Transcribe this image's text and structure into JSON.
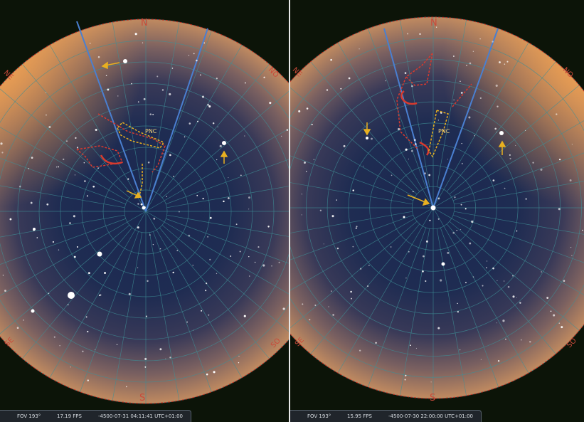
{
  "left_view": {
    "cardinals": {
      "north": "N",
      "south": "S",
      "northeast": "NE",
      "northwest": "NO",
      "southeast": "SE",
      "southwest": "SO"
    },
    "label": "PNC",
    "status": {
      "fov": "FOV 193°",
      "fps": "17.19 FPS",
      "datetime": "-4500-07-31 04:11:41 UTC+01:00"
    }
  },
  "right_view": {
    "cardinals": {
      "north": "N",
      "south": "S",
      "northeast": "NE",
      "northwest": "NO",
      "southeast": "SE",
      "southwest": "SO"
    },
    "label": "PNC",
    "status": {
      "fov": "FOV 193°",
      "fps": "15.95 FPS",
      "datetime": "-4500-07-30 22:00:00 UTC+01:00"
    }
  },
  "colors": {
    "sky_center": "#1c2a50",
    "horizon_glow": "#e8a060",
    "grid": "#3f8f96",
    "meridian": "#4a7fd0",
    "asterism": "#d83a2e",
    "highlight": "#e8b020",
    "cardinal": "#c94a3a"
  },
  "icons": {
    "arrow": "pointer-arrow-icon",
    "pole": "celestial-pole-marker-icon"
  }
}
